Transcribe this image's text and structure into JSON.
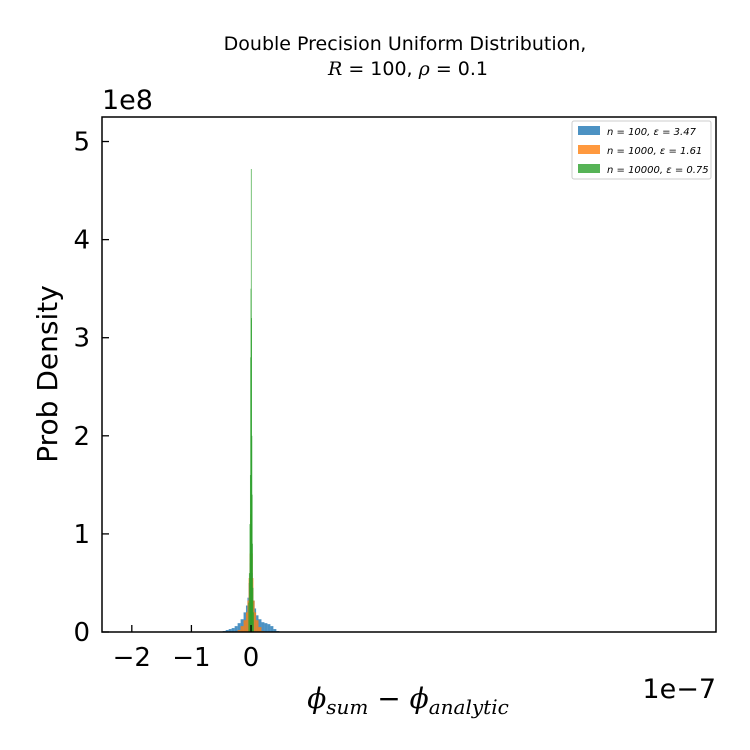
{
  "chart_data": {
    "type": "histogram",
    "title_line1": "Double Precision Uniform Distribution,",
    "title_line2": "R = 100, ρ = 0.1",
    "xlabel": "φsum − φanalytic",
    "ylabel": "Prob Density",
    "x_offset_label": "1e−7",
    "y_offset_label": "1e8",
    "x_scale": 1e-07,
    "y_scale": 100000000.0,
    "xlim": [
      -2.5,
      7.8
    ],
    "ylim": [
      0,
      5.25
    ],
    "xticks": [
      -2,
      -1,
      0
    ],
    "xtick_labels": [
      "−2",
      "−1",
      "0"
    ],
    "yticks": [
      0,
      1,
      2,
      3,
      4,
      5
    ],
    "ytick_labels": [
      "0",
      "1",
      "2",
      "3",
      "4",
      "5"
    ],
    "grid": false,
    "legend_position": "top-right",
    "series": [
      {
        "name": "n = 100, ε = 3.47",
        "color": "#1f77b4",
        "opacity": 0.8,
        "x": [
          -0.45,
          -0.4,
          -0.35,
          -0.3,
          -0.25,
          -0.2,
          -0.15,
          -0.1,
          -0.07,
          -0.05,
          -0.03,
          -0.02,
          -0.01,
          0.0,
          0.01,
          0.02,
          0.03,
          0.05,
          0.07,
          0.1,
          0.15,
          0.2,
          0.25,
          0.3,
          0.35,
          0.4,
          0.45,
          0.5
        ],
        "y": [
          0.01,
          0.02,
          0.03,
          0.04,
          0.06,
          0.09,
          0.13,
          0.2,
          0.27,
          0.35,
          0.5,
          0.7,
          1.0,
          1.2,
          0.9,
          0.6,
          0.45,
          0.32,
          0.24,
          0.17,
          0.13,
          0.1,
          0.09,
          0.08,
          0.06,
          0.03,
          0.01,
          0.0
        ]
      },
      {
        "name": "n = 1000, ε = 1.61",
        "color": "#ff7f0e",
        "opacity": 0.8,
        "x": [
          -0.2,
          -0.15,
          -0.1,
          -0.07,
          -0.05,
          -0.03,
          -0.02,
          -0.01,
          0.0,
          0.01,
          0.02,
          0.03,
          0.05,
          0.07,
          0.1,
          0.15,
          0.2
        ],
        "y": [
          0.02,
          0.06,
          0.12,
          0.2,
          0.32,
          0.55,
          0.8,
          1.2,
          1.4,
          1.1,
          0.8,
          0.55,
          0.32,
          0.2,
          0.12,
          0.05,
          0.01
        ]
      },
      {
        "name": "n = 10000, ε = 0.75",
        "color": "#2ca02c",
        "opacity": 0.8,
        "x": [
          -0.04,
          -0.03,
          -0.02,
          -0.015,
          -0.01,
          -0.005,
          0.0,
          0.005,
          0.01,
          0.015,
          0.02,
          0.03,
          0.04
        ],
        "y": [
          0.3,
          0.6,
          1.1,
          1.6,
          2.8,
          3.5,
          4.72,
          3.2,
          2.0,
          1.4,
          0.9,
          0.45,
          0.2
        ]
      }
    ]
  }
}
